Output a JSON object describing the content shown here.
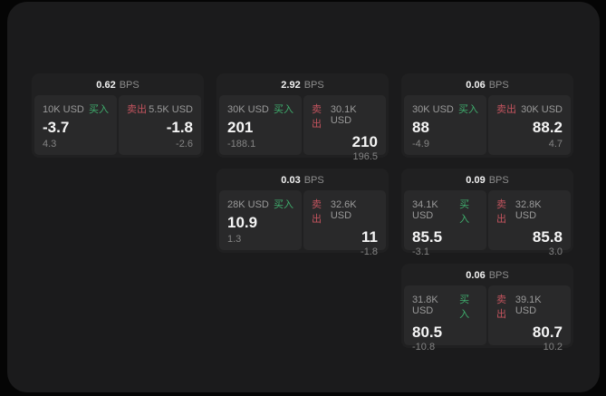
{
  "labels": {
    "bps_unit": "BPS",
    "buy": "买入",
    "sell": "卖出"
  },
  "colors": {
    "buy_green": "#3fae6d",
    "sell_red": "#c4545e",
    "page_bg": "#050505",
    "panel_bg": "#1b1b1c",
    "card_bg": "#202021",
    "subpanel_bg": "#29292a"
  },
  "cards": [
    {
      "bps": "0.62",
      "buy": {
        "amount": "10K USD",
        "price": "-3.7",
        "delta": "4.3"
      },
      "sell": {
        "amount": "5.5K USD",
        "price": "-1.8",
        "delta": "-2.6"
      }
    },
    {
      "bps": "2.92",
      "buy": {
        "amount": "30K USD",
        "price": "201",
        "delta": "-188.1"
      },
      "sell": {
        "amount": "30.1K USD",
        "price": "210",
        "delta": "196.5"
      }
    },
    {
      "bps": "0.06",
      "buy": {
        "amount": "30K USD",
        "price": "88",
        "delta": "-4.9"
      },
      "sell": {
        "amount": "30K USD",
        "price": "88.2",
        "delta": "4.7"
      }
    },
    {
      "bps": "0.03",
      "buy": {
        "amount": "28K USD",
        "price": "10.9",
        "delta": "1.3"
      },
      "sell": {
        "amount": "32.6K USD",
        "price": "11",
        "delta": "-1.8"
      }
    },
    {
      "bps": "0.09",
      "buy": {
        "amount": "34.1K USD",
        "price": "85.5",
        "delta": "-3.1"
      },
      "sell": {
        "amount": "32.8K USD",
        "price": "85.8",
        "delta": "3.0"
      }
    },
    {
      "bps": "0.06",
      "buy": {
        "amount": "31.8K USD",
        "price": "80.5",
        "delta": "-10.8"
      },
      "sell": {
        "amount": "39.1K USD",
        "price": "80.7",
        "delta": "10.2"
      }
    }
  ]
}
